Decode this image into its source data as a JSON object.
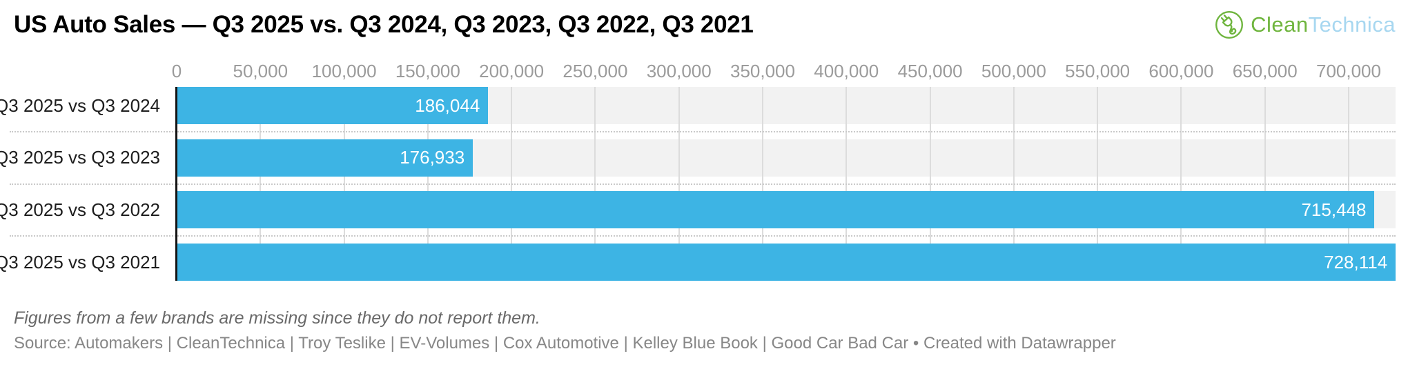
{
  "header": {
    "title": "US Auto Sales — Q3 2025 vs. Q3 2024, Q3 2023, Q3 2022, Q3 2021",
    "logo": {
      "icon": "cleantechnica-plug-icon",
      "text_green": "Clean",
      "text_blue": "Technica"
    }
  },
  "chart_data": {
    "type": "bar",
    "orientation": "horizontal",
    "title": "US Auto Sales — Q3 2025 vs. Q3 2024, Q3 2023, Q3 2022, Q3 2021",
    "categories": [
      "Q3 2025 vs Q3 2024",
      "Q3 2025 vs Q3 2023",
      "Q3 2025 vs Q3 2022",
      "Q3 2025 vs Q3 2021"
    ],
    "values": [
      186044,
      176933,
      715448,
      728114
    ],
    "value_labels": [
      "186,044",
      "176,933",
      "715,448",
      "728,114"
    ],
    "x_tick_values": [
      0,
      50000,
      100000,
      150000,
      200000,
      250000,
      300000,
      350000,
      400000,
      450000,
      500000,
      550000,
      600000,
      650000,
      700000
    ],
    "x_tick_labels": [
      "0",
      "50,000",
      "100,000",
      "150,000",
      "200,000",
      "250,000",
      "300,000",
      "350,000",
      "400,000",
      "450,000",
      "500,000",
      "550,000",
      "600,000",
      "650,000",
      "700,000"
    ],
    "xlim": [
      0,
      728114
    ],
    "grid": true,
    "legend": false,
    "value_labels_position": "inside-end",
    "row_separator_style": "dotted"
  },
  "colors": {
    "bar": "#3db4e4",
    "row_band": "#f2f2f2",
    "gridline": "#dcdcdc",
    "axis_baseline": "#141414",
    "separator_dots": "#c9c9c9",
    "axis_label": "#9b9b9b",
    "row_label": "#1d1d1d",
    "value_label": "#ffffff",
    "logo_green": "#6fb53e",
    "logo_blue": "#a7d7f0"
  },
  "footer": {
    "footnote": "Figures from a few brands are missing since they do not report them.",
    "source": "Source: Automakers | CleanTechnica | Troy Teslike | EV-Volumes | Cox Automotive | Kelley Blue Book | Good Car Bad Car • Created with Datawrapper"
  }
}
